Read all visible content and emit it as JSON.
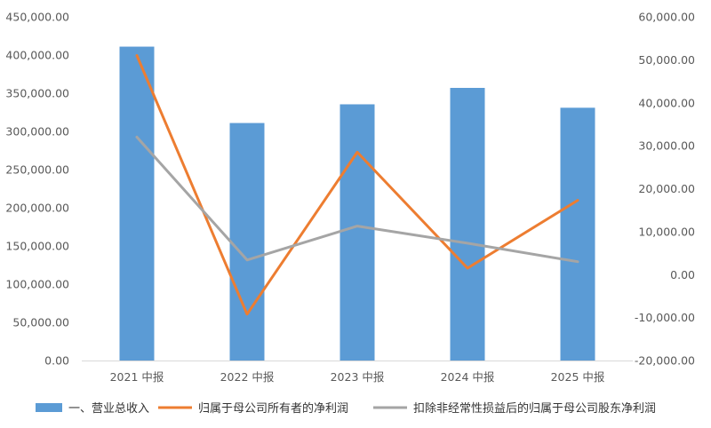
{
  "chart_data": {
    "type": "bar",
    "categories": [
      "2021 中报",
      "2022 中报",
      "2023 中报",
      "2024 中报",
      "2025 中报"
    ],
    "series": [
      {
        "name": "一、营业总收入",
        "type": "bar",
        "axis": "left",
        "color": "#5B9BD5",
        "values": [
          411000,
          311000,
          335500,
          357000,
          331000
        ]
      },
      {
        "name": "归属于母公司所有者的净利润",
        "type": "line",
        "axis": "right",
        "color": "#ED7D31",
        "values": [
          51000,
          -9200,
          28500,
          1500,
          17300
        ]
      },
      {
        "name": "扣除非经常性损益后的归属于母公司股东净利润",
        "type": "line",
        "axis": "right",
        "color": "#A5A5A5",
        "values": [
          32000,
          3400,
          11300,
          7300,
          3000
        ]
      }
    ],
    "y_left": {
      "min": 0,
      "max": 450000,
      "step": 50000,
      "tick_labels": [
        "0.00",
        "50,000.00",
        "100,000.00",
        "150,000.00",
        "200,000.00",
        "250,000.00",
        "300,000.00",
        "350,000.00",
        "400,000.00",
        "450,000.00"
      ]
    },
    "y_right": {
      "min": -20000,
      "max": 60000,
      "step": 10000,
      "tick_labels": [
        "-20,000.00",
        "-10,000.00",
        "0.00",
        "10,000.00",
        "20,000.00",
        "30,000.00",
        "40,000.00",
        "50,000.00",
        "60,000.00"
      ]
    },
    "grid": false,
    "legend_position": "bottom"
  }
}
